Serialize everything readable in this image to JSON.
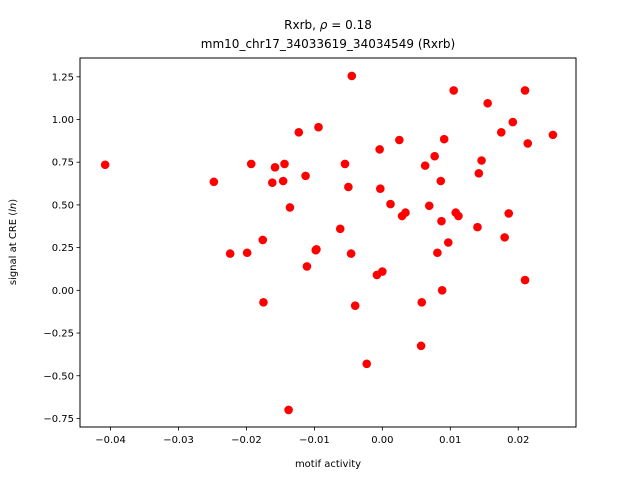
{
  "chart_data": {
    "type": "scatter",
    "title_line1_prefix": "Rxrb, ",
    "title_line1_rho": "ρ",
    "title_line1_suffix": " = 0.18",
    "title_line2": "mm10_chr17_34033619_34034549 (Rxrb)",
    "xlabel": "motif activity",
    "ylabel_prefix": "signal at CRE (",
    "ylabel_italic": "ln",
    "ylabel_suffix": ")",
    "xlim": [
      -0.0445,
      0.0285
    ],
    "ylim": [
      -0.8,
      1.36
    ],
    "xticks": [
      -0.04,
      -0.03,
      -0.02,
      -0.01,
      0.0,
      0.01,
      0.02
    ],
    "xtick_labels": [
      "−0.04",
      "−0.03",
      "−0.02",
      "−0.01",
      "0.00",
      "0.01",
      "0.02"
    ],
    "yticks": [
      -0.75,
      -0.5,
      -0.25,
      0.0,
      0.25,
      0.5,
      0.75,
      1.0,
      1.25
    ],
    "ytick_labels": [
      "−0.75",
      "−0.50",
      "−0.25",
      "0.00",
      "0.25",
      "0.50",
      "0.75",
      "1.00",
      "1.25"
    ],
    "marker_color": "#ff0000",
    "grid": false,
    "points": [
      {
        "x": -0.0408,
        "y": 0.735
      },
      {
        "x": -0.0248,
        "y": 0.635
      },
      {
        "x": -0.0224,
        "y": 0.215
      },
      {
        "x": -0.0199,
        "y": 0.22
      },
      {
        "x": -0.0193,
        "y": 0.74
      },
      {
        "x": -0.0176,
        "y": 0.295
      },
      {
        "x": -0.0175,
        "y": -0.07
      },
      {
        "x": -0.0162,
        "y": 0.63
      },
      {
        "x": -0.0158,
        "y": 0.72
      },
      {
        "x": -0.0146,
        "y": 0.64
      },
      {
        "x": -0.0144,
        "y": 0.74
      },
      {
        "x": -0.0138,
        "y": -0.7
      },
      {
        "x": -0.0136,
        "y": 0.485
      },
      {
        "x": -0.0123,
        "y": 0.925
      },
      {
        "x": -0.0113,
        "y": 0.67
      },
      {
        "x": -0.0111,
        "y": 0.14
      },
      {
        "x": -0.0098,
        "y": 0.235
      },
      {
        "x": -0.0097,
        "y": 0.24
      },
      {
        "x": -0.0094,
        "y": 0.955
      },
      {
        "x": -0.0062,
        "y": 0.36
      },
      {
        "x": -0.0055,
        "y": 0.74
      },
      {
        "x": -0.005,
        "y": 0.605
      },
      {
        "x": -0.0046,
        "y": 0.215
      },
      {
        "x": -0.0045,
        "y": 1.255
      },
      {
        "x": -0.004,
        "y": -0.09
      },
      {
        "x": -0.0023,
        "y": -0.43
      },
      {
        "x": -0.0008,
        "y": 0.09
      },
      {
        "x": -0.0004,
        "y": 0.825
      },
      {
        "x": -0.0003,
        "y": 0.595
      },
      {
        "x": 0.0,
        "y": 0.11
      },
      {
        "x": 0.0012,
        "y": 0.505
      },
      {
        "x": 0.0025,
        "y": 0.88
      },
      {
        "x": 0.0029,
        "y": 0.435
      },
      {
        "x": 0.0034,
        "y": 0.455
      },
      {
        "x": 0.0057,
        "y": -0.325
      },
      {
        "x": 0.0058,
        "y": -0.07
      },
      {
        "x": 0.0063,
        "y": 0.73
      },
      {
        "x": 0.0069,
        "y": 0.495
      },
      {
        "x": 0.0077,
        "y": 0.785
      },
      {
        "x": 0.0081,
        "y": 0.22
      },
      {
        "x": 0.0086,
        "y": 0.64
      },
      {
        "x": 0.0087,
        "y": 0.405
      },
      {
        "x": 0.0088,
        "y": 0.0
      },
      {
        "x": 0.0091,
        "y": 0.885
      },
      {
        "x": 0.0097,
        "y": 0.28
      },
      {
        "x": 0.0105,
        "y": 1.17
      },
      {
        "x": 0.0108,
        "y": 0.455
      },
      {
        "x": 0.0112,
        "y": 0.435
      },
      {
        "x": 0.014,
        "y": 0.37
      },
      {
        "x": 0.0142,
        "y": 0.685
      },
      {
        "x": 0.0146,
        "y": 0.76
      },
      {
        "x": 0.0155,
        "y": 1.095
      },
      {
        "x": 0.0175,
        "y": 0.925
      },
      {
        "x": 0.018,
        "y": 0.31
      },
      {
        "x": 0.0186,
        "y": 0.45
      },
      {
        "x": 0.0192,
        "y": 0.985
      },
      {
        "x": 0.021,
        "y": 1.17
      },
      {
        "x": 0.021,
        "y": 0.06
      },
      {
        "x": 0.0214,
        "y": 0.86
      },
      {
        "x": 0.0251,
        "y": 0.91
      }
    ]
  }
}
